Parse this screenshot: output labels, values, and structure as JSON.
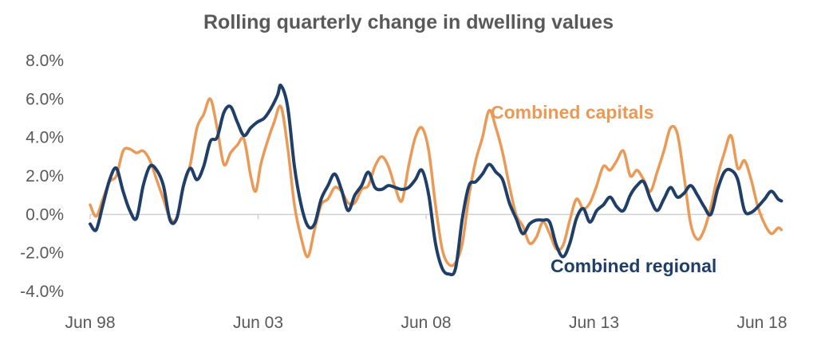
{
  "chart_data": {
    "type": "line",
    "title": "Rolling quarterly change in dwelling values",
    "xlabel": "",
    "ylabel": "",
    "ylim": [
      -4,
      8
    ],
    "y_ticks": [
      {
        "value": 8,
        "label": "8.0%"
      },
      {
        "value": 6,
        "label": "6.0%"
      },
      {
        "value": 4,
        "label": "4.0%"
      },
      {
        "value": 2,
        "label": "2.0%"
      },
      {
        "value": 0,
        "label": "0.0%"
      },
      {
        "value": -2,
        "label": "-2.0%"
      },
      {
        "value": -4,
        "label": "-4.0%"
      }
    ],
    "xlim": [
      1998.42,
      2018.42
    ],
    "x_ticks": [
      {
        "value": 1998.42,
        "label": "Jun 98"
      },
      {
        "value": 2003.42,
        "label": "Jun 03"
      },
      {
        "value": 2008.42,
        "label": "Jun 08"
      },
      {
        "value": 2013.42,
        "label": "Jun 13"
      },
      {
        "value": 2018.42,
        "label": "Jun 18"
      }
    ],
    "grid": false,
    "series": [
      {
        "name": "Combined capitals",
        "label": "Combined capitals",
        "color": "#EA9A56",
        "points": [
          [
            1998.42,
            0.5
          ],
          [
            1998.6,
            -0.1
          ],
          [
            1998.8,
            0.8
          ],
          [
            1999.0,
            1.7
          ],
          [
            1999.2,
            2.0
          ],
          [
            1999.4,
            3.3
          ],
          [
            1999.6,
            3.4
          ],
          [
            1999.8,
            3.2
          ],
          [
            2000.0,
            3.3
          ],
          [
            2000.2,
            2.8
          ],
          [
            2000.4,
            1.8
          ],
          [
            2000.6,
            0.8
          ],
          [
            2000.8,
            -0.2
          ],
          [
            2001.0,
            -0.2
          ],
          [
            2001.2,
            1.5
          ],
          [
            2001.4,
            2.6
          ],
          [
            2001.6,
            4.5
          ],
          [
            2001.8,
            5.2
          ],
          [
            2002.0,
            6.0
          ],
          [
            2002.2,
            4.5
          ],
          [
            2002.4,
            2.6
          ],
          [
            2002.6,
            3.2
          ],
          [
            2002.8,
            3.6
          ],
          [
            2003.0,
            3.9
          ],
          [
            2003.2,
            2.0
          ],
          [
            2003.35,
            1.2
          ],
          [
            2003.5,
            2.6
          ],
          [
            2003.7,
            3.8
          ],
          [
            2003.9,
            4.8
          ],
          [
            2004.1,
            5.6
          ],
          [
            2004.3,
            3.5
          ],
          [
            2004.5,
            0.5
          ],
          [
            2004.7,
            -1.2
          ],
          [
            2004.9,
            -2.2
          ],
          [
            2005.1,
            -0.8
          ],
          [
            2005.3,
            0.5
          ],
          [
            2005.5,
            0.8
          ],
          [
            2005.7,
            1.4
          ],
          [
            2005.9,
            1.2
          ],
          [
            2006.1,
            0.6
          ],
          [
            2006.3,
            0.6
          ],
          [
            2006.5,
            1.3
          ],
          [
            2006.7,
            1.5
          ],
          [
            2006.9,
            2.5
          ],
          [
            2007.1,
            3.0
          ],
          [
            2007.3,
            2.5
          ],
          [
            2007.5,
            1.4
          ],
          [
            2007.7,
            0.7
          ],
          [
            2007.9,
            2.5
          ],
          [
            2008.1,
            4.0
          ],
          [
            2008.3,
            4.5
          ],
          [
            2008.5,
            3.3
          ],
          [
            2008.7,
            0.5
          ],
          [
            2008.9,
            -1.8
          ],
          [
            2009.1,
            -2.6
          ],
          [
            2009.3,
            -2.5
          ],
          [
            2009.5,
            -1.5
          ],
          [
            2009.7,
            1.0
          ],
          [
            2009.9,
            2.8
          ],
          [
            2010.1,
            4.0
          ],
          [
            2010.3,
            5.4
          ],
          [
            2010.5,
            4.5
          ],
          [
            2010.7,
            3.2
          ],
          [
            2010.9,
            1.5
          ],
          [
            2011.1,
            0.0
          ],
          [
            2011.3,
            -0.6
          ],
          [
            2011.5,
            -1.5
          ],
          [
            2011.7,
            -1.2
          ],
          [
            2011.9,
            -0.4
          ],
          [
            2012.1,
            -1.0
          ],
          [
            2012.3,
            -1.8
          ],
          [
            2012.5,
            -1.6
          ],
          [
            2012.7,
            -0.3
          ],
          [
            2012.9,
            0.8
          ],
          [
            2013.1,
            0.3
          ],
          [
            2013.3,
            0.6
          ],
          [
            2013.5,
            1.5
          ],
          [
            2013.7,
            2.5
          ],
          [
            2013.9,
            2.3
          ],
          [
            2014.1,
            2.8
          ],
          [
            2014.3,
            3.3
          ],
          [
            2014.5,
            2.0
          ],
          [
            2014.7,
            2.3
          ],
          [
            2014.9,
            1.8
          ],
          [
            2015.1,
            1.2
          ],
          [
            2015.3,
            2.2
          ],
          [
            2015.5,
            3.3
          ],
          [
            2015.7,
            4.5
          ],
          [
            2015.9,
            4.2
          ],
          [
            2016.1,
            2.0
          ],
          [
            2016.3,
            -0.5
          ],
          [
            2016.5,
            -1.3
          ],
          [
            2016.7,
            -0.8
          ],
          [
            2016.9,
            0.4
          ],
          [
            2017.1,
            2.0
          ],
          [
            2017.3,
            3.2
          ],
          [
            2017.5,
            4.1
          ],
          [
            2017.7,
            2.4
          ],
          [
            2017.9,
            2.8
          ],
          [
            2018.1,
            1.8
          ],
          [
            2018.3,
            0.4
          ],
          [
            2018.5,
            -0.5
          ],
          [
            2018.7,
            -1.0
          ],
          [
            2018.9,
            -0.7
          ],
          [
            2019.0,
            -0.8
          ]
        ]
      },
      {
        "name": "Combined regional",
        "label": "Combined regional",
        "color": "#203F68",
        "points": [
          [
            1998.42,
            -0.5
          ],
          [
            1998.6,
            -0.8
          ],
          [
            1998.8,
            0.5
          ],
          [
            1999.0,
            1.8
          ],
          [
            1999.2,
            2.4
          ],
          [
            1999.4,
            1.2
          ],
          [
            1999.6,
            0.2
          ],
          [
            1999.8,
            -0.2
          ],
          [
            2000.0,
            1.5
          ],
          [
            2000.2,
            2.5
          ],
          [
            2000.4,
            2.3
          ],
          [
            2000.6,
            1.5
          ],
          [
            2000.8,
            -0.3
          ],
          [
            2001.0,
            -0.2
          ],
          [
            2001.2,
            1.5
          ],
          [
            2001.4,
            2.4
          ],
          [
            2001.6,
            1.8
          ],
          [
            2001.8,
            2.5
          ],
          [
            2002.0,
            3.8
          ],
          [
            2002.2,
            4.0
          ],
          [
            2002.4,
            5.3
          ],
          [
            2002.6,
            5.6
          ],
          [
            2002.8,
            4.8
          ],
          [
            2003.0,
            4.1
          ],
          [
            2003.2,
            4.5
          ],
          [
            2003.4,
            4.8
          ],
          [
            2003.6,
            5.0
          ],
          [
            2003.8,
            5.5
          ],
          [
            2004.0,
            6.2
          ],
          [
            2004.1,
            6.7
          ],
          [
            2004.3,
            5.6
          ],
          [
            2004.5,
            2.5
          ],
          [
            2004.7,
            0.5
          ],
          [
            2004.9,
            -0.6
          ],
          [
            2005.1,
            -0.5
          ],
          [
            2005.3,
            0.8
          ],
          [
            2005.5,
            1.5
          ],
          [
            2005.7,
            2.1
          ],
          [
            2005.9,
            1.3
          ],
          [
            2006.1,
            0.2
          ],
          [
            2006.3,
            1.0
          ],
          [
            2006.5,
            1.5
          ],
          [
            2006.7,
            2.2
          ],
          [
            2006.9,
            1.4
          ],
          [
            2007.1,
            1.3
          ],
          [
            2007.3,
            1.5
          ],
          [
            2007.5,
            1.4
          ],
          [
            2007.7,
            1.3
          ],
          [
            2007.9,
            1.4
          ],
          [
            2008.1,
            1.8
          ],
          [
            2008.3,
            2.3
          ],
          [
            2008.5,
            1.0
          ],
          [
            2008.7,
            -1.5
          ],
          [
            2008.9,
            -2.8
          ],
          [
            2009.1,
            -3.1
          ],
          [
            2009.3,
            -2.8
          ],
          [
            2009.5,
            -0.2
          ],
          [
            2009.7,
            1.5
          ],
          [
            2009.9,
            1.7
          ],
          [
            2010.1,
            2.1
          ],
          [
            2010.3,
            2.6
          ],
          [
            2010.5,
            2.2
          ],
          [
            2010.7,
            1.8
          ],
          [
            2010.9,
            0.6
          ],
          [
            2011.1,
            -0.2
          ],
          [
            2011.3,
            -1.0
          ],
          [
            2011.5,
            -0.5
          ],
          [
            2011.7,
            -0.3
          ],
          [
            2011.9,
            -0.3
          ],
          [
            2012.1,
            -0.4
          ],
          [
            2012.3,
            -1.6
          ],
          [
            2012.5,
            -2.2
          ],
          [
            2012.7,
            -1.5
          ],
          [
            2012.9,
            -0.2
          ],
          [
            2013.1,
            0.3
          ],
          [
            2013.3,
            -0.4
          ],
          [
            2013.5,
            0.2
          ],
          [
            2013.7,
            0.5
          ],
          [
            2013.9,
            0.9
          ],
          [
            2014.1,
            0.4
          ],
          [
            2014.3,
            0.2
          ],
          [
            2014.5,
            1.0
          ],
          [
            2014.7,
            1.5
          ],
          [
            2014.9,
            1.7
          ],
          [
            2015.1,
            0.8
          ],
          [
            2015.3,
            0.2
          ],
          [
            2015.5,
            0.8
          ],
          [
            2015.7,
            1.4
          ],
          [
            2015.9,
            0.9
          ],
          [
            2016.1,
            1.1
          ],
          [
            2016.3,
            1.5
          ],
          [
            2016.5,
            1.0
          ],
          [
            2016.7,
            0.4
          ],
          [
            2016.9,
            0.0
          ],
          [
            2017.1,
            1.3
          ],
          [
            2017.3,
            2.2
          ],
          [
            2017.5,
            2.3
          ],
          [
            2017.7,
            1.8
          ],
          [
            2017.9,
            0.2
          ],
          [
            2018.1,
            0.1
          ],
          [
            2018.3,
            0.4
          ],
          [
            2018.5,
            0.8
          ],
          [
            2018.7,
            1.2
          ],
          [
            2018.9,
            0.8
          ],
          [
            2019.0,
            0.7
          ]
        ]
      }
    ]
  }
}
